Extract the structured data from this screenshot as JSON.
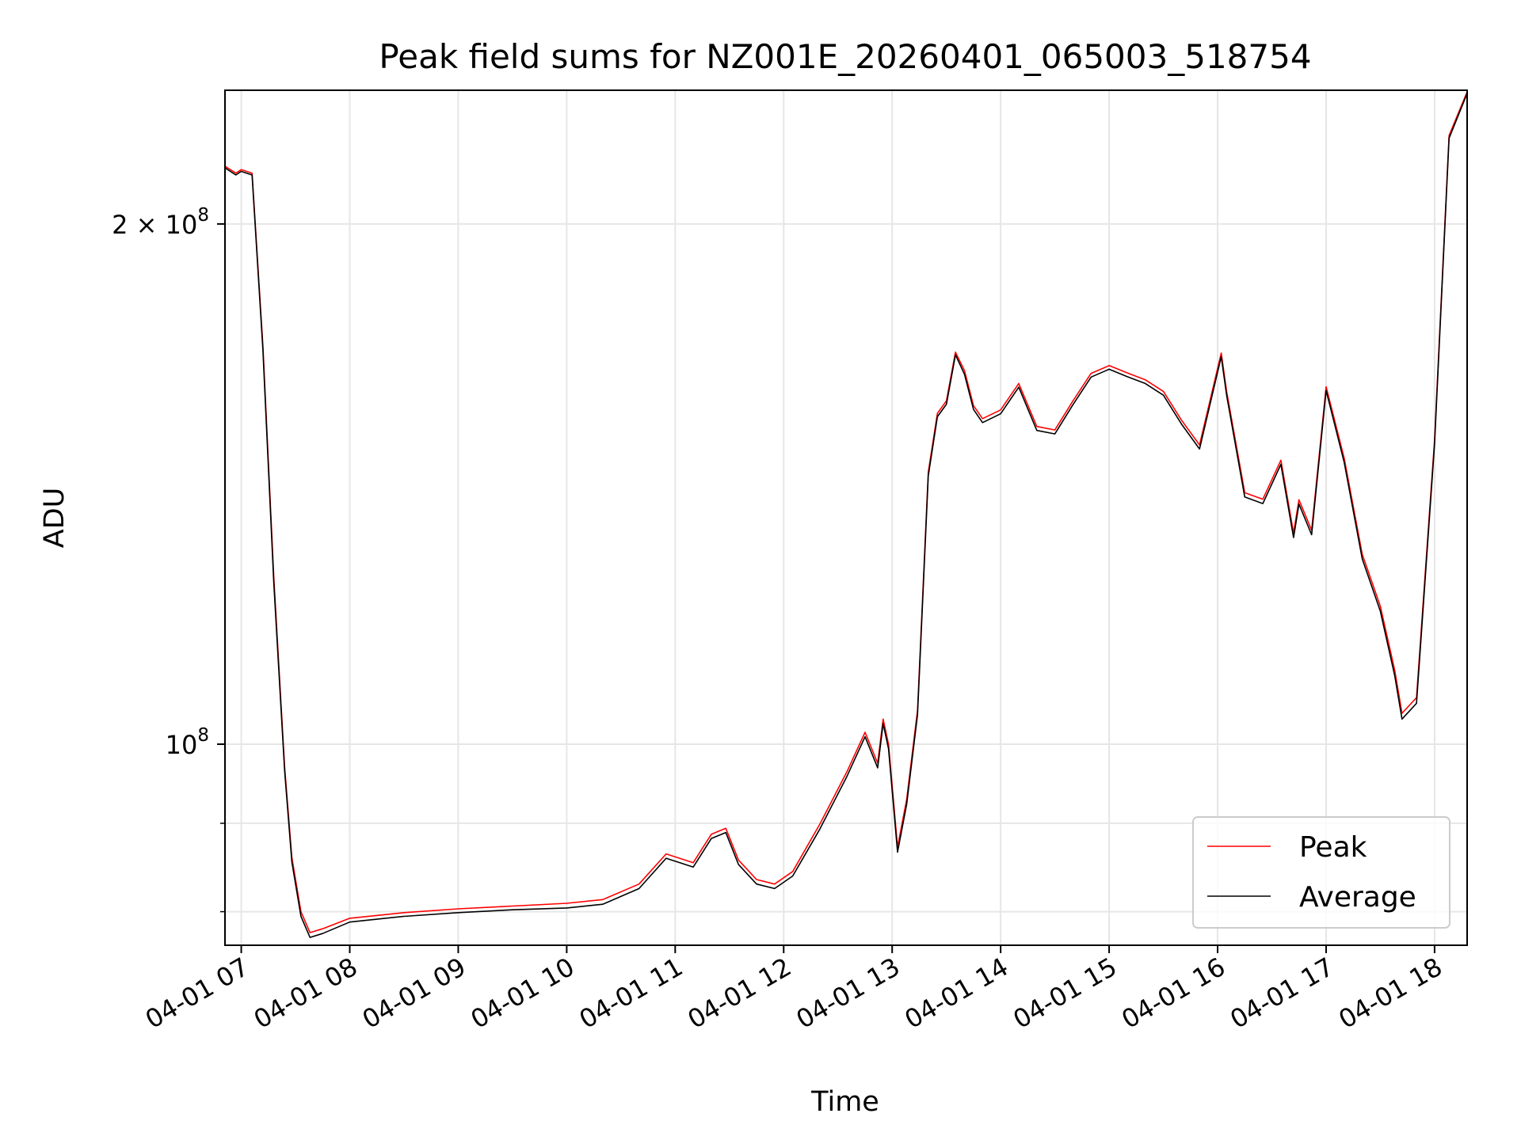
{
  "chart_data": {
    "type": "line",
    "title": "Peak field sums for NZ001E_20260401_065003_518754",
    "xlabel": "Time",
    "ylabel": "ADU",
    "y_scale": "log",
    "grid": true,
    "legend_position": "lower-right",
    "xlim": [
      "2026-04-01 06:51",
      "2026-04-01 18:18"
    ],
    "ylim": [
      76500000,
      239000000
    ],
    "x_ticks": [
      {
        "value": "2026-04-01 07:00",
        "label": "04-01 07"
      },
      {
        "value": "2026-04-01 08:00",
        "label": "04-01 08"
      },
      {
        "value": "2026-04-01 09:00",
        "label": "04-01 09"
      },
      {
        "value": "2026-04-01 10:00",
        "label": "04-01 10"
      },
      {
        "value": "2026-04-01 11:00",
        "label": "04-01 11"
      },
      {
        "value": "2026-04-01 12:00",
        "label": "04-01 12"
      },
      {
        "value": "2026-04-01 13:00",
        "label": "04-01 13"
      },
      {
        "value": "2026-04-01 14:00",
        "label": "04-01 14"
      },
      {
        "value": "2026-04-01 15:00",
        "label": "04-01 15"
      },
      {
        "value": "2026-04-01 16:00",
        "label": "04-01 16"
      },
      {
        "value": "2026-04-01 17:00",
        "label": "04-01 17"
      },
      {
        "value": "2026-04-01 18:00",
        "label": "04-01 18"
      }
    ],
    "y_ticks": [
      {
        "value": 100000000,
        "mantissa": "",
        "base": "10",
        "exponent": "8"
      },
      {
        "value": 200000000,
        "mantissa": "2 × ",
        "base": "10",
        "exponent": "8"
      }
    ],
    "y_minor_ticks": [
      80000000,
      90000000
    ],
    "series": [
      {
        "name": "Peak",
        "color": "#ff0000",
        "x": [
          "2026-04-01 06:51",
          "2026-04-01 06:57",
          "2026-04-01 07:00",
          "2026-04-01 07:06",
          "2026-04-01 07:12",
          "2026-04-01 07:18",
          "2026-04-01 07:24",
          "2026-04-01 07:28",
          "2026-04-01 07:33",
          "2026-04-01 07:38",
          "2026-04-01 07:45",
          "2026-04-01 08:00",
          "2026-04-01 08:30",
          "2026-04-01 09:00",
          "2026-04-01 09:30",
          "2026-04-01 10:00",
          "2026-04-01 10:20",
          "2026-04-01 10:40",
          "2026-04-01 10:55",
          "2026-04-01 11:10",
          "2026-04-01 11:20",
          "2026-04-01 11:28",
          "2026-04-01 11:35",
          "2026-04-01 11:45",
          "2026-04-01 11:55",
          "2026-04-01 12:05",
          "2026-04-01 12:20",
          "2026-04-01 12:35",
          "2026-04-01 12:45",
          "2026-04-01 12:52",
          "2026-04-01 12:55",
          "2026-04-01 12:58",
          "2026-04-01 13:03",
          "2026-04-01 13:08",
          "2026-04-01 13:14",
          "2026-04-01 13:20",
          "2026-04-01 13:25",
          "2026-04-01 13:30",
          "2026-04-01 13:35",
          "2026-04-01 13:40",
          "2026-04-01 13:45",
          "2026-04-01 13:50",
          "2026-04-01 14:00",
          "2026-04-01 14:10",
          "2026-04-01 14:20",
          "2026-04-01 14:30",
          "2026-04-01 14:40",
          "2026-04-01 14:50",
          "2026-04-01 15:00",
          "2026-04-01 15:10",
          "2026-04-01 15:20",
          "2026-04-01 15:30",
          "2026-04-01 15:40",
          "2026-04-01 15:50",
          "2026-04-01 16:02",
          "2026-04-01 16:05",
          "2026-04-01 16:15",
          "2026-04-01 16:25",
          "2026-04-01 16:35",
          "2026-04-01 16:42",
          "2026-04-01 16:45",
          "2026-04-01 16:52",
          "2026-04-01 17:00",
          "2026-04-01 17:10",
          "2026-04-01 17:20",
          "2026-04-01 17:30",
          "2026-04-01 17:38",
          "2026-04-01 17:42",
          "2026-04-01 17:50",
          "2026-04-01 18:00",
          "2026-04-01 18:08",
          "2026-04-01 18:18"
        ],
        "values": [
          216000000,
          214000000,
          215000000,
          214000000,
          170000000,
          125000000,
          97000000,
          86000000,
          80000000,
          77800000,
          78200000,
          79300000,
          79900000,
          80300000,
          80600000,
          80900000,
          81300000,
          83000000,
          86400000,
          85400000,
          88700000,
          89400000,
          85700000,
          83500000,
          83000000,
          84400000,
          89900000,
          96400000,
          101600000,
          97500000,
          103400000,
          100000000,
          87200000,
          92900000,
          104600000,
          143700000,
          155400000,
          158000000,
          168600000,
          164500000,
          157000000,
          154300000,
          156100000,
          161700000,
          152700000,
          152000000,
          158000000,
          163900000,
          165600000,
          164000000,
          162500000,
          160000000,
          154000000,
          149000000,
          168400000,
          160000000,
          139800000,
          138600000,
          146000000,
          132500000,
          138500000,
          133000000,
          161000000,
          146400000,
          128800000,
          120200000,
          110300000,
          104200000,
          106400000,
          150000000,
          225000000,
          238500000
        ]
      },
      {
        "name": "Average",
        "color": "#000000",
        "x": [
          "2026-04-01 06:51",
          "2026-04-01 06:57",
          "2026-04-01 07:00",
          "2026-04-01 07:06",
          "2026-04-01 07:12",
          "2026-04-01 07:18",
          "2026-04-01 07:24",
          "2026-04-01 07:28",
          "2026-04-01 07:33",
          "2026-04-01 07:38",
          "2026-04-01 07:45",
          "2026-04-01 08:00",
          "2026-04-01 08:30",
          "2026-04-01 09:00",
          "2026-04-01 09:30",
          "2026-04-01 10:00",
          "2026-04-01 10:20",
          "2026-04-01 10:40",
          "2026-04-01 10:55",
          "2026-04-01 11:10",
          "2026-04-01 11:20",
          "2026-04-01 11:28",
          "2026-04-01 11:35",
          "2026-04-01 11:45",
          "2026-04-01 11:55",
          "2026-04-01 12:05",
          "2026-04-01 12:20",
          "2026-04-01 12:35",
          "2026-04-01 12:45",
          "2026-04-01 12:52",
          "2026-04-01 12:55",
          "2026-04-01 12:58",
          "2026-04-01 13:03",
          "2026-04-01 13:08",
          "2026-04-01 13:14",
          "2026-04-01 13:20",
          "2026-04-01 13:25",
          "2026-04-01 13:30",
          "2026-04-01 13:35",
          "2026-04-01 13:40",
          "2026-04-01 13:45",
          "2026-04-01 13:50",
          "2026-04-01 14:00",
          "2026-04-01 14:10",
          "2026-04-01 14:20",
          "2026-04-01 14:30",
          "2026-04-01 14:40",
          "2026-04-01 14:50",
          "2026-04-01 15:00",
          "2026-04-01 15:10",
          "2026-04-01 15:20",
          "2026-04-01 15:30",
          "2026-04-01 15:40",
          "2026-04-01 15:50",
          "2026-04-01 16:02",
          "2026-04-01 16:05",
          "2026-04-01 16:15",
          "2026-04-01 16:25",
          "2026-04-01 16:35",
          "2026-04-01 16:42",
          "2026-04-01 16:45",
          "2026-04-01 16:52",
          "2026-04-01 17:00",
          "2026-04-01 17:10",
          "2026-04-01 17:20",
          "2026-04-01 17:30",
          "2026-04-01 17:38",
          "2026-04-01 17:42",
          "2026-04-01 17:50",
          "2026-04-01 18:00",
          "2026-04-01 18:08",
          "2026-04-01 18:18"
        ],
        "values": [
          215500000,
          213500000,
          214500000,
          213500000,
          169000000,
          124000000,
          96500000,
          85500000,
          79500000,
          77300000,
          77700000,
          78900000,
          79500000,
          79900000,
          80200000,
          80400000,
          80800000,
          82500000,
          85900000,
          84900000,
          88200000,
          88900000,
          85200000,
          83000000,
          82500000,
          83900000,
          89300000,
          95800000,
          101000000,
          96900000,
          102800000,
          99400000,
          86600000,
          92300000,
          104000000,
          143000000,
          154700000,
          157300000,
          168000000,
          163700000,
          156200000,
          153500000,
          155300000,
          160900000,
          151900000,
          151200000,
          157200000,
          163100000,
          164800000,
          163200000,
          161700000,
          159200000,
          153200000,
          148200000,
          167600000,
          159200000,
          139000000,
          137800000,
          145200000,
          131700000,
          137700000,
          132200000,
          160200000,
          145600000,
          128000000,
          119400000,
          109500000,
          103400000,
          105600000,
          149200000,
          224200000,
          238000000
        ]
      }
    ]
  }
}
